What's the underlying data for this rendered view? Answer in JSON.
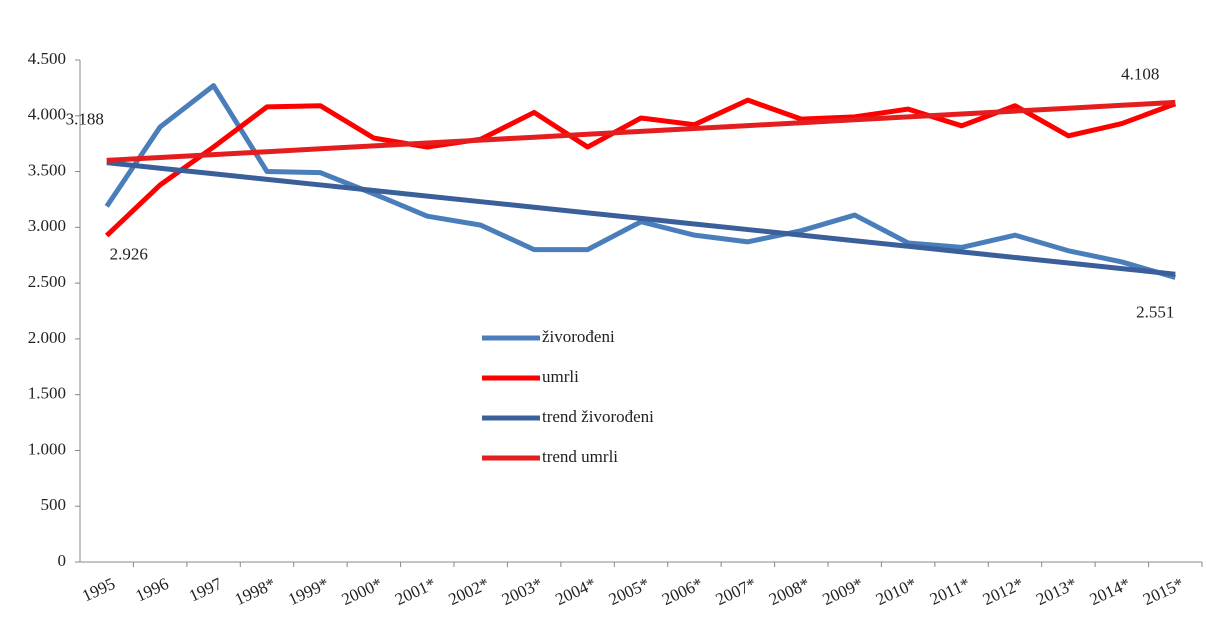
{
  "chart_data": {
    "type": "line",
    "categories": [
      "1995",
      "1996",
      "1997",
      "1998*",
      "1999*",
      "2000*",
      "2001*",
      "2002*",
      "2003*",
      "2004*",
      "2005*",
      "2006*",
      "2007*",
      "2008*",
      "2009*",
      "2010*",
      "2011*",
      "2012*",
      "2013*",
      "2014*",
      "2015*"
    ],
    "series": [
      {
        "name": "živorođeni",
        "color": "#4a7ebb",
        "values": [
          3188,
          3900,
          4270,
          3500,
          3490,
          3300,
          3100,
          3020,
          2800,
          2800,
          3050,
          2930,
          2870,
          2970,
          3110,
          2860,
          2820,
          2930,
          2790,
          2690,
          2551
        ],
        "value_labels": [
          "3.188",
          null,
          null,
          null,
          null,
          null,
          null,
          null,
          null,
          null,
          null,
          null,
          null,
          null,
          null,
          null,
          null,
          null,
          null,
          null,
          "2.551"
        ]
      },
      {
        "name": "umrli",
        "color": "#ff0000",
        "values": [
          2926,
          3380,
          3720,
          4080,
          4090,
          3800,
          3720,
          3790,
          4030,
          3720,
          3980,
          3920,
          4140,
          3970,
          3990,
          4060,
          3910,
          4090,
          3820,
          3930,
          4108
        ],
        "value_labels": [
          "2.926",
          null,
          null,
          null,
          null,
          null,
          null,
          null,
          null,
          null,
          null,
          null,
          null,
          null,
          null,
          null,
          null,
          null,
          null,
          null,
          "4.108"
        ]
      },
      {
        "name": "trend živorođeni",
        "color": "#3a5f9a",
        "values": [
          3580,
          3530,
          3480,
          3430,
          3380,
          3330,
          3280,
          3230,
          3180,
          3130,
          3080,
          3030,
          2980,
          2930,
          2880,
          2830,
          2780,
          2730,
          2680,
          2630,
          2580
        ]
      },
      {
        "name": "trend umrli",
        "color": "#e41e1e",
        "values": [
          3600,
          3626,
          3652,
          3678,
          3704,
          3730,
          3756,
          3782,
          3808,
          3834,
          3860,
          3886,
          3912,
          3938,
          3964,
          3990,
          4016,
          4042,
          4068,
          4094,
          4120
        ]
      }
    ],
    "ylim": [
      0,
      4500
    ],
    "yticks": [
      0,
      500,
      {
        "value": 1000,
        "label": "1.000"
      },
      {
        "value": 1500,
        "label": "1.500"
      },
      {
        "value": 2000,
        "label": "2.000"
      },
      {
        "value": 2500,
        "label": "2.500"
      },
      {
        "value": 3000,
        "label": "3.000"
      },
      {
        "value": 3500,
        "label": "3.500"
      },
      {
        "value": 4000,
        "label": "4.000"
      },
      {
        "value": 4500,
        "label": "4.500"
      }
    ],
    "grid": false
  }
}
